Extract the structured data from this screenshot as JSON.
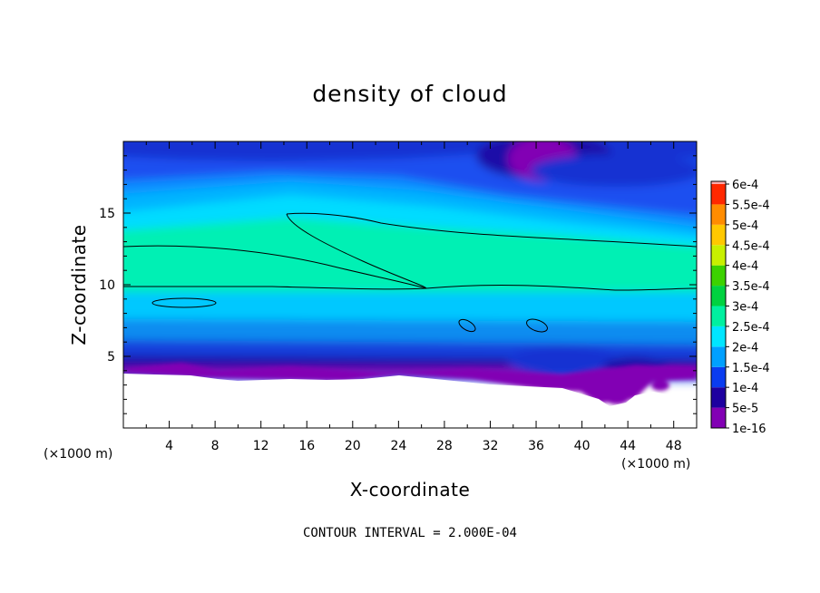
{
  "chart_data": {
    "type": "heatmap",
    "title": "density of cloud",
    "xlabel": "X-coordinate",
    "ylabel": "Z-coordinate",
    "x_unit": "(×1000 m)",
    "y_unit": "(×1000 m)",
    "xlim": [
      0,
      50
    ],
    "ylim": [
      0,
      20
    ],
    "x_ticks": [
      4,
      8,
      12,
      16,
      20,
      24,
      28,
      32,
      36,
      40,
      44,
      48
    ],
    "y_ticks": [
      5,
      10,
      15
    ],
    "contour_interval_text": "CONTOUR INTERVAL = 2.000E-04",
    "colorbar": {
      "levels": [
        {
          "label": "1e-16",
          "color": "#8200b4"
        },
        {
          "label": "5e-5",
          "color": "#1e00a0"
        },
        {
          "label": "1e-4",
          "color": "#0a3cf0"
        },
        {
          "label": "1.5e-4",
          "color": "#00a0ff"
        },
        {
          "label": "2e-4",
          "color": "#00e6ff"
        },
        {
          "label": "2.5e-4",
          "color": "#00f0a0"
        },
        {
          "label": "3e-4",
          "color": "#00d240"
        },
        {
          "label": "3.5e-4",
          "color": "#3cd200"
        },
        {
          "label": "4e-4",
          "color": "#c8f000"
        },
        {
          "label": "4.5e-4",
          "color": "#ffc800"
        },
        {
          "label": "5e-4",
          "color": "#ff8c00"
        },
        {
          "label": "5.5e-4",
          "color": "#ff2800"
        },
        {
          "label": "6e-4",
          "color": "#ff7878"
        }
      ],
      "top_color": "#ffaaaa"
    }
  }
}
